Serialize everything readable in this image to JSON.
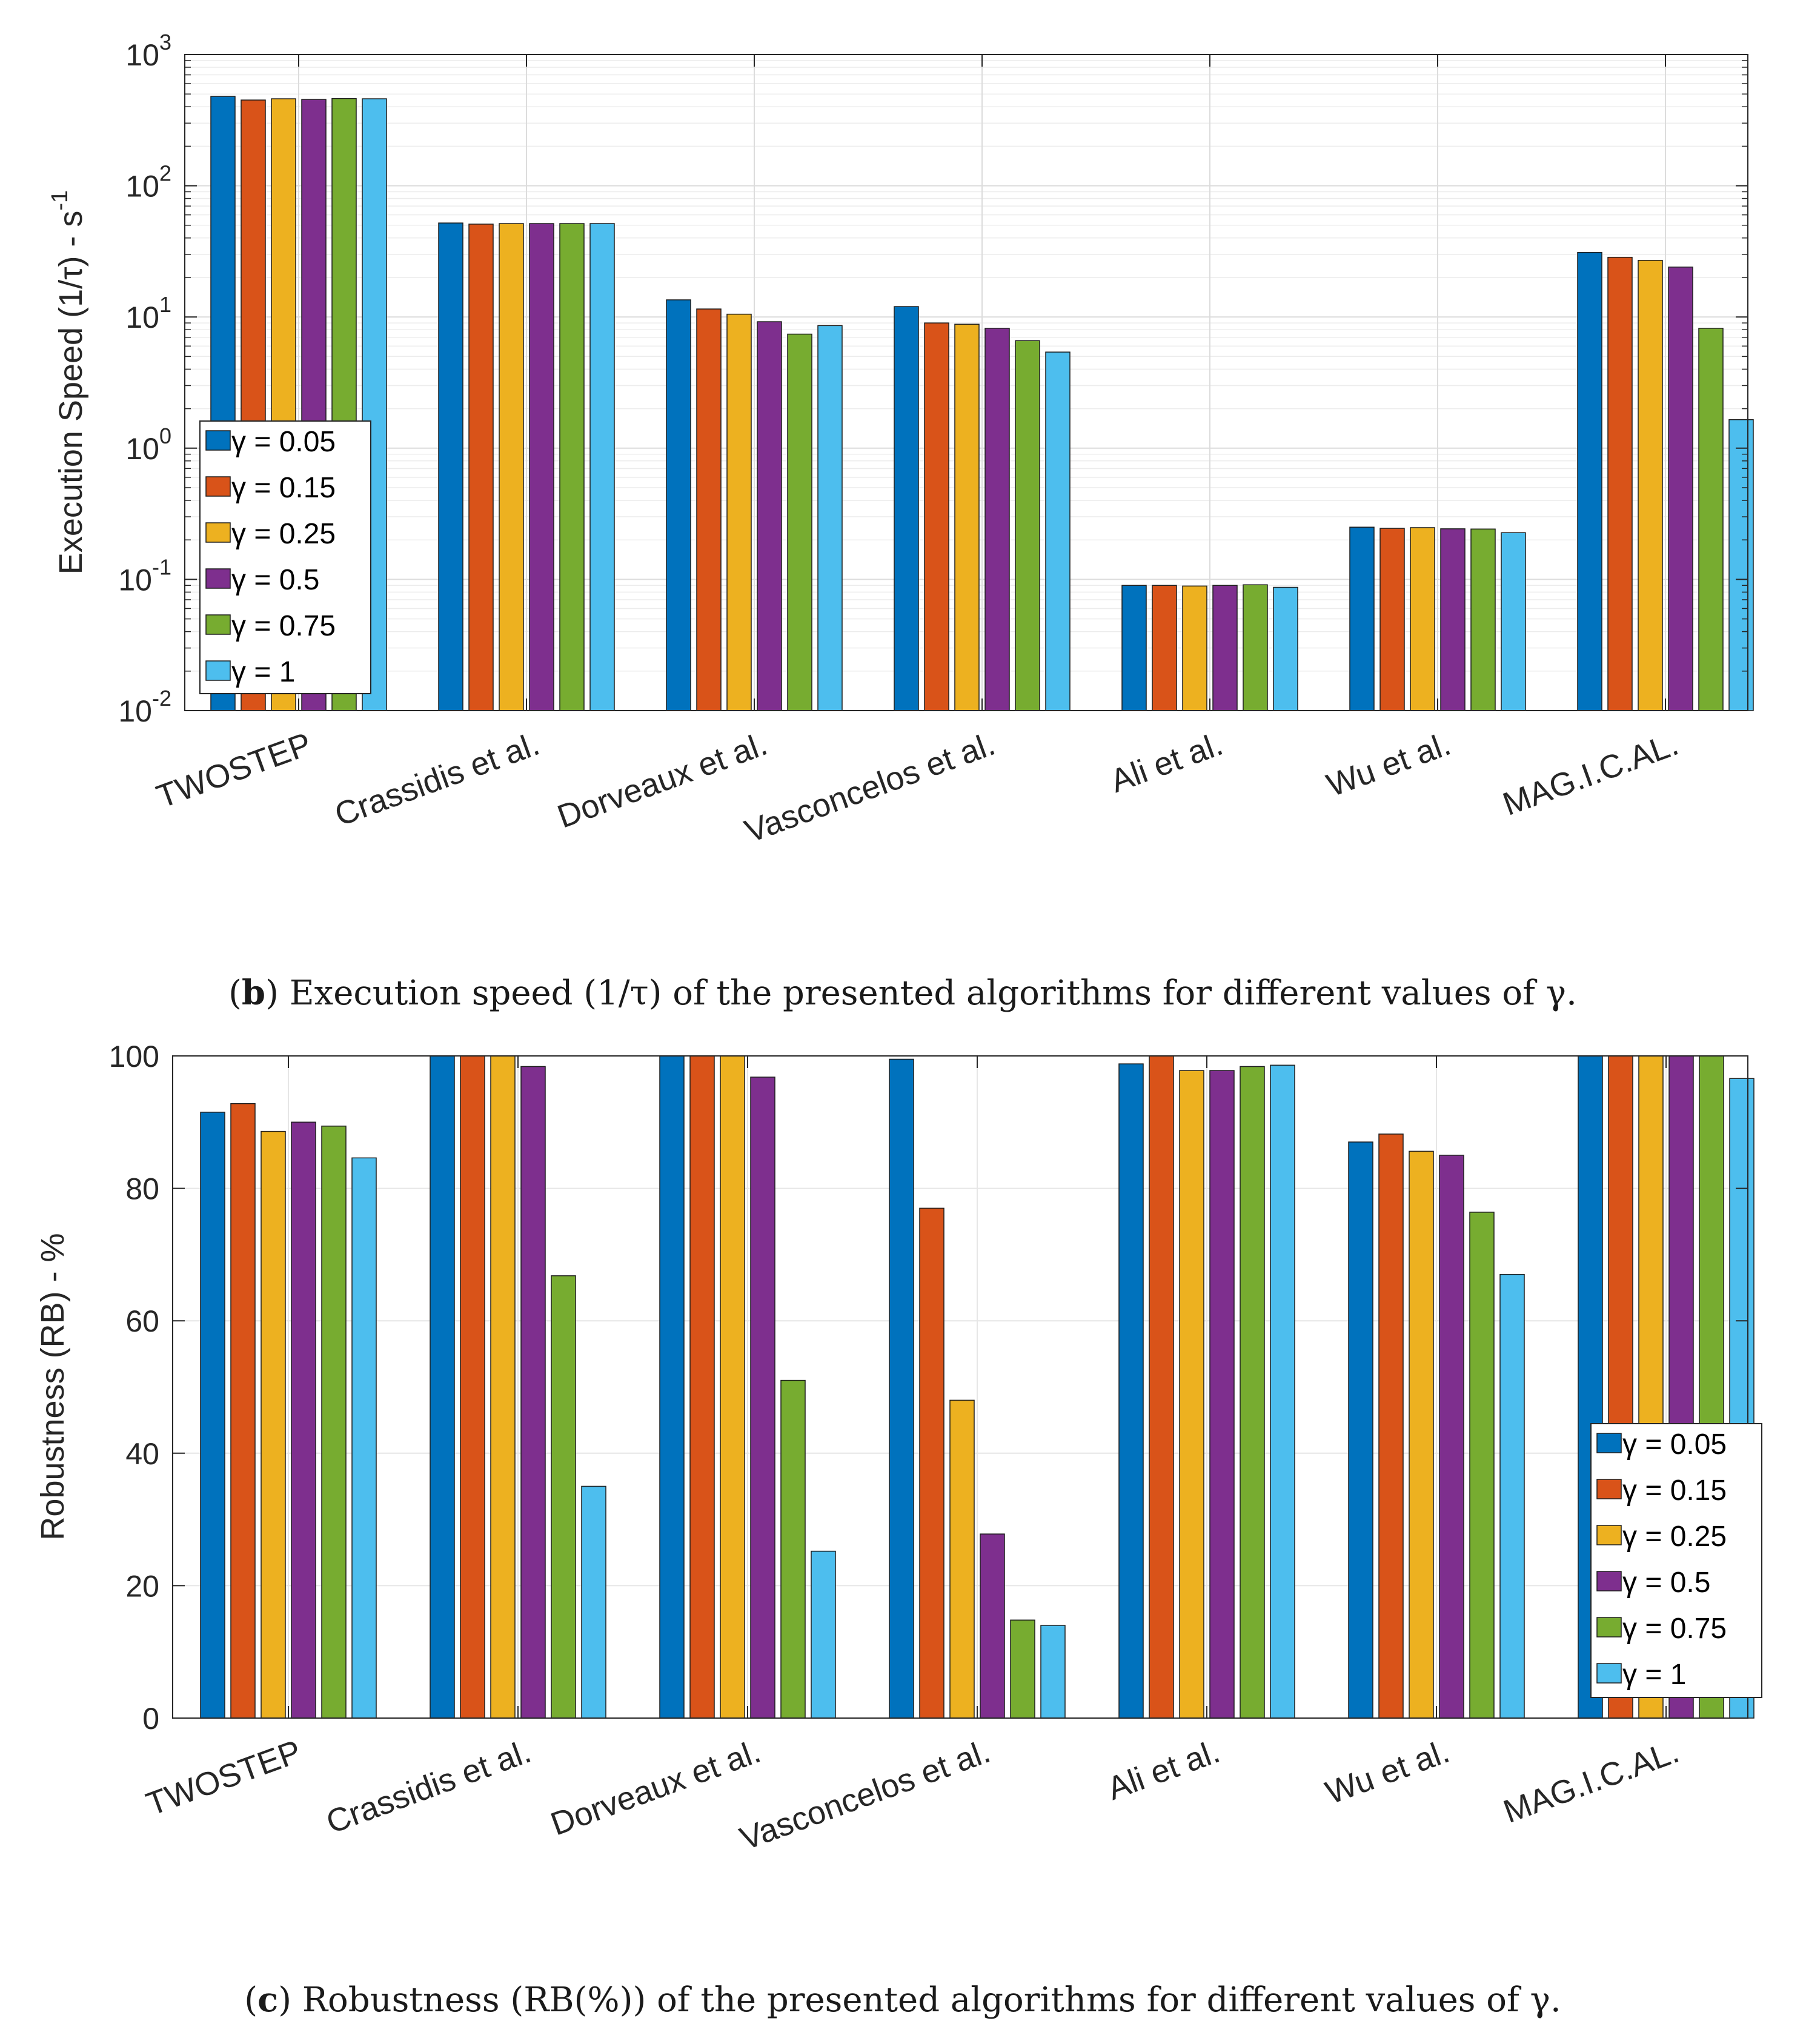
{
  "colors": [
    "#0072BD",
    "#D95319",
    "#EDB120",
    "#7E2F8E",
    "#77AC30",
    "#4DBEEE"
  ],
  "chart_data": [
    {
      "id": "b",
      "type": "bar",
      "scale": "log",
      "categories": [
        "TWOSTEP",
        "Crassidis et al.",
        "Dorveaux et al.",
        "Vasconcelos et al.",
        "Ali et al.",
        "Wu et al.",
        "MAG.I.C.AL."
      ],
      "series": [
        {
          "name": "γ = 0.05",
          "values": [
            480,
            52,
            13.5,
            12,
            0.09,
            0.25,
            31
          ]
        },
        {
          "name": "γ = 0.15",
          "values": [
            450,
            51,
            11.5,
            9,
            0.09,
            0.245,
            28.5
          ]
        },
        {
          "name": "γ = 0.25",
          "values": [
            460,
            51.5,
            10.5,
            8.8,
            0.089,
            0.248,
            27
          ]
        },
        {
          "name": "γ = 0.5",
          "values": [
            455,
            51.5,
            9.2,
            8.2,
            0.09,
            0.243,
            24
          ]
        },
        {
          "name": "γ = 0.75",
          "values": [
            462,
            51.5,
            7.4,
            6.6,
            0.091,
            0.242,
            8.2
          ]
        },
        {
          "name": "γ = 1",
          "values": [
            460,
            51.5,
            8.6,
            5.4,
            0.087,
            0.227,
            1.65
          ]
        }
      ],
      "ylabel": "Execution Speed (1/τ) - s",
      "ylabel_sup": "-1",
      "yticks": [
        {
          "base": "10",
          "exp": "-2"
        },
        {
          "base": "10",
          "exp": "-1"
        },
        {
          "base": "10",
          "exp": "0"
        },
        {
          "base": "10",
          "exp": "1"
        },
        {
          "base": "10",
          "exp": "2"
        },
        {
          "base": "10",
          "exp": "3"
        }
      ],
      "ylim": [
        0.01,
        1000
      ],
      "grid": true,
      "legend_position": "lower-left",
      "caption_letter": "b",
      "caption_text": " Execution speed (1/τ) of the presented algorithms for different values of γ."
    },
    {
      "id": "c",
      "type": "bar",
      "scale": "linear",
      "categories": [
        "TWOSTEP",
        "Crassidis et al.",
        "Dorveaux et al.",
        "Vasconcelos et al.",
        "Ali et al.",
        "Wu et al.",
        "MAG.I.C.AL."
      ],
      "series": [
        {
          "name": "γ = 0.05",
          "values": [
            91.5,
            100,
            100,
            99.5,
            98.8,
            87,
            100
          ]
        },
        {
          "name": "γ = 0.15",
          "values": [
            92.8,
            100,
            100,
            77,
            100,
            88.2,
            100
          ]
        },
        {
          "name": "γ = 0.25",
          "values": [
            88.6,
            100,
            100,
            48,
            97.8,
            85.6,
            100
          ]
        },
        {
          "name": "γ = 0.5",
          "values": [
            90,
            98.4,
            96.8,
            27.8,
            97.8,
            85,
            100
          ]
        },
        {
          "name": "γ = 0.75",
          "values": [
            89.4,
            66.8,
            51,
            14.8,
            98.4,
            76.4,
            100
          ]
        },
        {
          "name": "γ = 1",
          "values": [
            84.6,
            35,
            25.2,
            14,
            98.6,
            67,
            96.6
          ]
        }
      ],
      "ylabel": "Robustness (RB) - %",
      "yticks": [
        "0",
        "20",
        "40",
        "60",
        "80",
        "100"
      ],
      "ylim": [
        0,
        100
      ],
      "grid": true,
      "legend_position": "lower-right",
      "caption_letter": "c",
      "caption_text": " Robustness (RB(%)) of the presented algorithms for different values of γ."
    }
  ]
}
